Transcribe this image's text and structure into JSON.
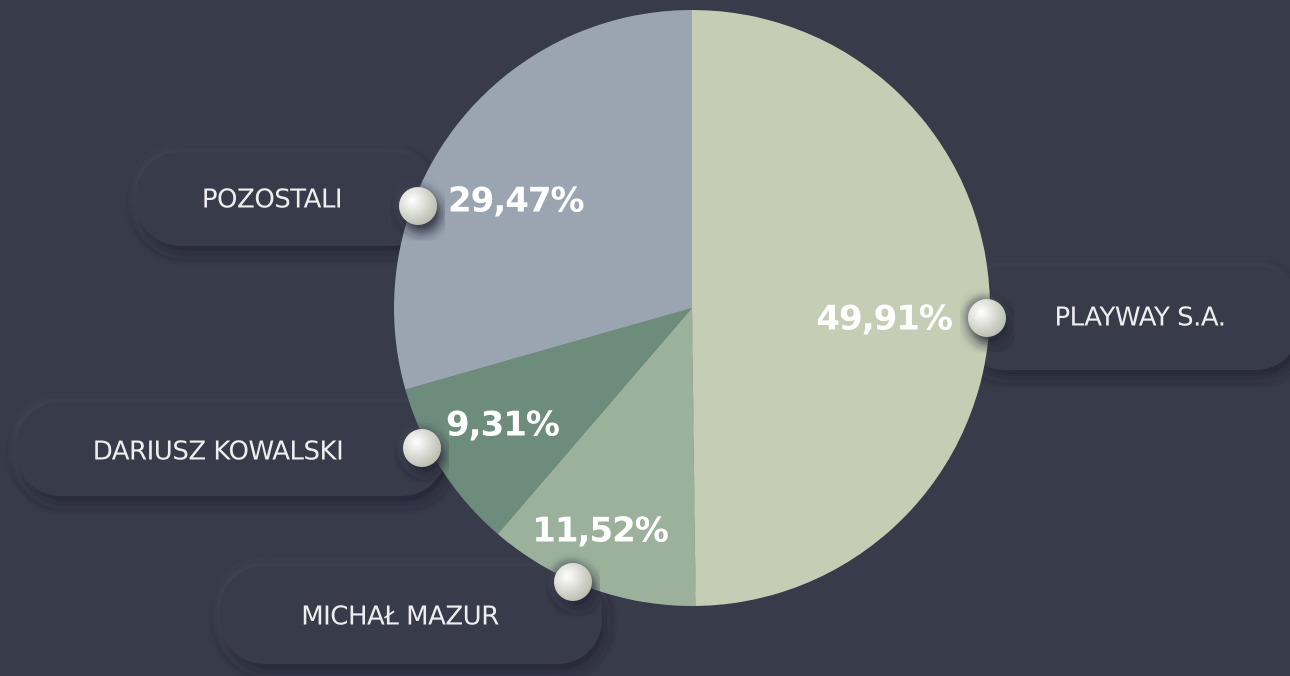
{
  "chart_data": {
    "type": "pie",
    "categories": [
      "PLAYWAY S.A.",
      "MICHAŁ MAZUR",
      "DARIUSZ KOWALSKI",
      "POZOSTALI"
    ],
    "values": [
      49.91,
      11.52,
      9.31,
      29.47
    ],
    "value_labels": [
      "49,91%",
      "11,52%",
      "9,31%",
      "29,47%"
    ],
    "colors": [
      "#c5cdb4",
      "#9cb19b",
      "#6e8c7b",
      "#9aa5b1"
    ]
  }
}
